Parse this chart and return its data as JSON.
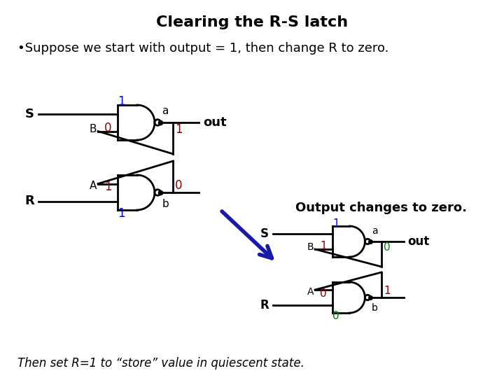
{
  "title": "Clearing the R-S latch",
  "subtitle": "•Suppose we start with output = 1, then change R to zero.",
  "footer": "Then set R=1 to “store” value in quiescent state.",
  "bg_color": "#ffffff",
  "title_fontsize": 16,
  "body_fontsize": 13
}
